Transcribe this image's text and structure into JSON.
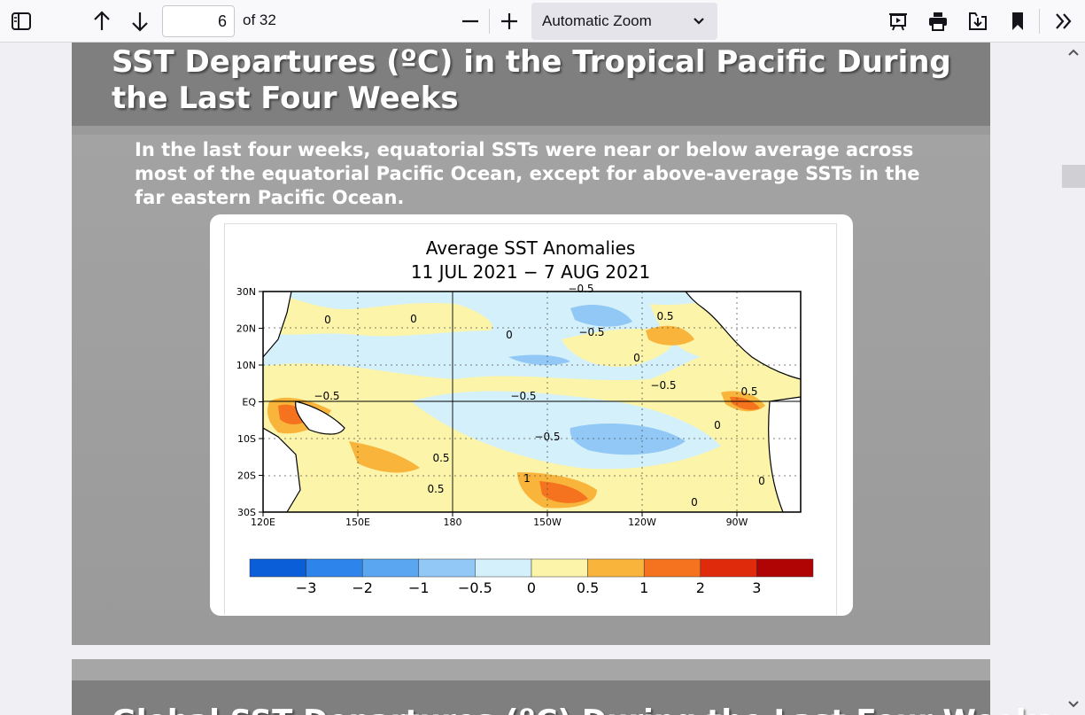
{
  "toolbar": {
    "page_number": "6",
    "page_count": "of 32",
    "zoom": "Automatic Zoom",
    "icons": [
      "sidebar-toggle-icon",
      "arrow-up-icon",
      "arrow-down-icon",
      "zoom-out-icon",
      "zoom-in-icon",
      "presentation-icon",
      "print-icon",
      "save-icon",
      "bookmark-icon",
      "more-tools-icon"
    ]
  },
  "slide": {
    "title": "SST Departures (ºC) in the Tropical Pacific During the Last Four Weeks",
    "description": "In the last four weeks, equatorial SSTs were near or below average across most of the equatorial Pacific Ocean, except for above-average SSTs in the far eastern Pacific Ocean."
  },
  "next_slide": {
    "title": "Global SST Departures (ºC) During the Last Four Weeks"
  },
  "chart_data": {
    "type": "heatmap",
    "title": "Average SST Anomalies",
    "subtitle": "11 JUL 2021 − 7 AUG 2021",
    "y_ticks": [
      "30N",
      "20N",
      "10N",
      "EQ",
      "10S",
      "20S",
      "30S"
    ],
    "x_ticks": [
      "120E",
      "150E",
      "180",
      "150W",
      "120W",
      "90W"
    ],
    "contour_labels": [
      "0",
      "0",
      "0",
      "0",
      "0",
      "0",
      "0",
      "0.5",
      "0.5",
      "0.5",
      "0.5",
      "1",
      "−0.5",
      "−0.5",
      "−0.5",
      "−0.5",
      "−0.5",
      "−0.5"
    ],
    "colorbar": {
      "colors": [
        "#0a5fd8",
        "#2d84eb",
        "#5aa6f0",
        "#92c8f5",
        "#d4f1fb",
        "#fbf4a9",
        "#f9b43b",
        "#f5721e",
        "#e02a0c",
        "#b00404"
      ],
      "labels": [
        "−3",
        "−2",
        "−1",
        "−0.5",
        "0",
        "0.5",
        "1",
        "2",
        "3"
      ]
    }
  }
}
